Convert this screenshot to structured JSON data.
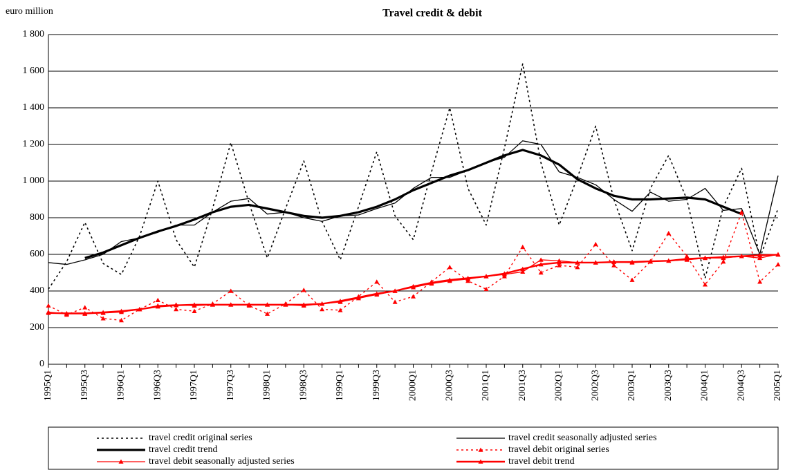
{
  "chart_data": {
    "type": "line",
    "title": "Travel credit & debit",
    "y_label": "euro million",
    "categories": [
      "1995Q1",
      null,
      "1995Q3",
      null,
      "1996Q1",
      null,
      "1996Q3",
      null,
      "1997Q1",
      null,
      "1997Q3",
      null,
      "1998Q1",
      null,
      "1998Q3",
      null,
      "1999Q1",
      null,
      "1999Q3",
      null,
      "2000Q1",
      null,
      "2000Q3",
      null,
      "2001Q1",
      null,
      "2001Q3",
      null,
      "2002Q1",
      null,
      "2002Q3",
      null,
      "2003Q1",
      null,
      "2003Q3",
      null,
      "2004Q1",
      null,
      "2004Q3",
      null,
      "2005Q1"
    ],
    "ylim": [
      0,
      1800
    ],
    "yticks": [
      0,
      200,
      400,
      600,
      800,
      {
        "value": 1000,
        "label": "1 000"
      },
      {
        "value": 1200,
        "label": "1 200"
      },
      {
        "value": 1400,
        "label": "1 400"
      },
      {
        "value": 1600,
        "label": "1 600"
      },
      {
        "value": 1800,
        "label": "1 800"
      }
    ],
    "grid": true,
    "series": [
      {
        "name": "travel credit original series",
        "color": "#000000",
        "dash": "3,4",
        "width": 1.6,
        "marker": "none",
        "values": [
          410,
          560,
          775,
          550,
          490,
          700,
          1000,
          680,
          530,
          850,
          1210,
          880,
          580,
          850,
          1110,
          780,
          570,
          860,
          1160,
          810,
          680,
          1050,
          1400,
          960,
          760,
          1180,
          1640,
          1100,
          760,
          1020,
          1300,
          900,
          620,
          960,
          1140,
          900,
          470,
          860,
          1070,
          580,
          850
        ]
      },
      {
        "name": "travel credit seasonally adjusted series",
        "color": "#000000",
        "dash": "none",
        "width": 1.3,
        "marker": "none",
        "values": [
          555,
          545,
          570,
          600,
          670,
          690,
          720,
          760,
          760,
          830,
          890,
          905,
          820,
          830,
          800,
          780,
          810,
          815,
          850,
          880,
          960,
          1020,
          1020,
          1060,
          1100,
          1130,
          1220,
          1200,
          1050,
          1020,
          980,
          900,
          835,
          940,
          890,
          900,
          960,
          840,
          850,
          600,
          1030
        ]
      },
      {
        "name": "travel credit trend",
        "color": "#000000",
        "dash": "none",
        "width": 3.2,
        "marker": "none",
        "values": [
          null,
          null,
          580,
          610,
          650,
          690,
          725,
          755,
          790,
          830,
          860,
          870,
          850,
          830,
          810,
          800,
          810,
          830,
          860,
          900,
          950,
          990,
          1030,
          1060,
          1100,
          1140,
          1170,
          1140,
          1090,
          1010,
          960,
          920,
          900,
          900,
          905,
          910,
          900,
          860,
          820,
          null,
          null
        ]
      },
      {
        "name": "travel debit original series",
        "color": "#ff0000",
        "dash": "3,4",
        "width": 1.4,
        "marker": "triangle",
        "values": [
          320,
          270,
          310,
          250,
          240,
          300,
          350,
          300,
          290,
          330,
          400,
          320,
          275,
          330,
          405,
          300,
          295,
          370,
          450,
          340,
          370,
          450,
          530,
          455,
          410,
          480,
          640,
          500,
          540,
          530,
          655,
          540,
          460,
          560,
          715,
          590,
          435,
          560,
          830,
          450,
          545
        ]
      },
      {
        "name": "travel debit seasonally adjusted series",
        "color": "#ff0000",
        "dash": "none",
        "width": 1.3,
        "marker": "triangle",
        "values": [
          285,
          275,
          275,
          280,
          285,
          300,
          320,
          325,
          320,
          325,
          325,
          325,
          325,
          325,
          320,
          330,
          340,
          360,
          380,
          400,
          420,
          440,
          455,
          465,
          480,
          490,
          505,
          570,
          565,
          555,
          555,
          560,
          555,
          560,
          565,
          570,
          580,
          580,
          590,
          580,
          600
        ]
      },
      {
        "name": "travel debit trend",
        "color": "#ff0000",
        "dash": "none",
        "width": 2.4,
        "marker": "triangle",
        "values": [
          280,
          278,
          278,
          283,
          290,
          300,
          315,
          322,
          325,
          325,
          325,
          325,
          325,
          325,
          325,
          330,
          345,
          365,
          385,
          400,
          425,
          445,
          460,
          470,
          480,
          495,
          520,
          545,
          555,
          555,
          555,
          558,
          558,
          562,
          565,
          575,
          580,
          585,
          590,
          595,
          598
        ]
      }
    ]
  }
}
